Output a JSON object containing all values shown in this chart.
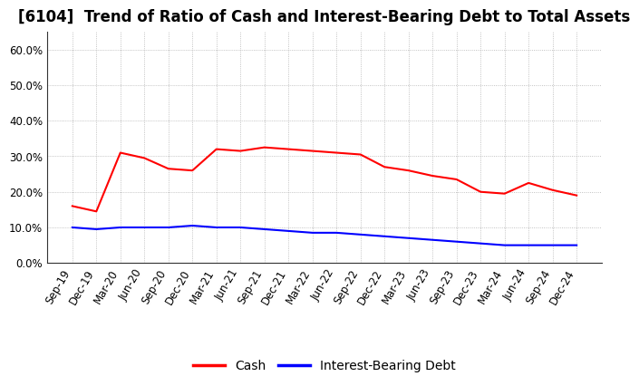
{
  "title": "[6104]  Trend of Ratio of Cash and Interest-Bearing Debt to Total Assets",
  "x_labels": [
    "Sep-19",
    "Dec-19",
    "Mar-20",
    "Jun-20",
    "Sep-20",
    "Dec-20",
    "Mar-21",
    "Jun-21",
    "Sep-21",
    "Dec-21",
    "Mar-22",
    "Jun-22",
    "Sep-22",
    "Dec-22",
    "Mar-23",
    "Jun-23",
    "Sep-23",
    "Dec-23",
    "Mar-24",
    "Jun-24",
    "Sep-24",
    "Dec-24"
  ],
  "cash": [
    16.0,
    14.5,
    31.0,
    29.5,
    26.5,
    26.0,
    32.0,
    31.5,
    32.5,
    32.0,
    31.5,
    31.0,
    30.5,
    27.0,
    26.0,
    24.5,
    23.5,
    20.0,
    19.5,
    22.5,
    20.5,
    19.0
  ],
  "debt": [
    10.0,
    9.5,
    10.0,
    10.0,
    10.0,
    10.5,
    10.0,
    10.0,
    9.5,
    9.0,
    8.5,
    8.5,
    8.0,
    7.5,
    7.0,
    6.5,
    6.0,
    5.5,
    5.0,
    5.0,
    5.0,
    5.0
  ],
  "cash_color": "#ff0000",
  "debt_color": "#0000ff",
  "ylim": [
    0,
    65
  ],
  "yticks": [
    0,
    10,
    20,
    30,
    40,
    50,
    60
  ],
  "ytick_labels": [
    "0.0%",
    "10.0%",
    "20.0%",
    "30.0%",
    "40.0%",
    "50.0%",
    "60.0%"
  ],
  "background_color": "#ffffff",
  "plot_bg_color": "#ffffff",
  "grid_color": "#b0b0b0",
  "legend_cash": "Cash",
  "legend_debt": "Interest-Bearing Debt",
  "title_fontsize": 12,
  "tick_fontsize": 8.5,
  "legend_fontsize": 10,
  "line_width": 1.5
}
